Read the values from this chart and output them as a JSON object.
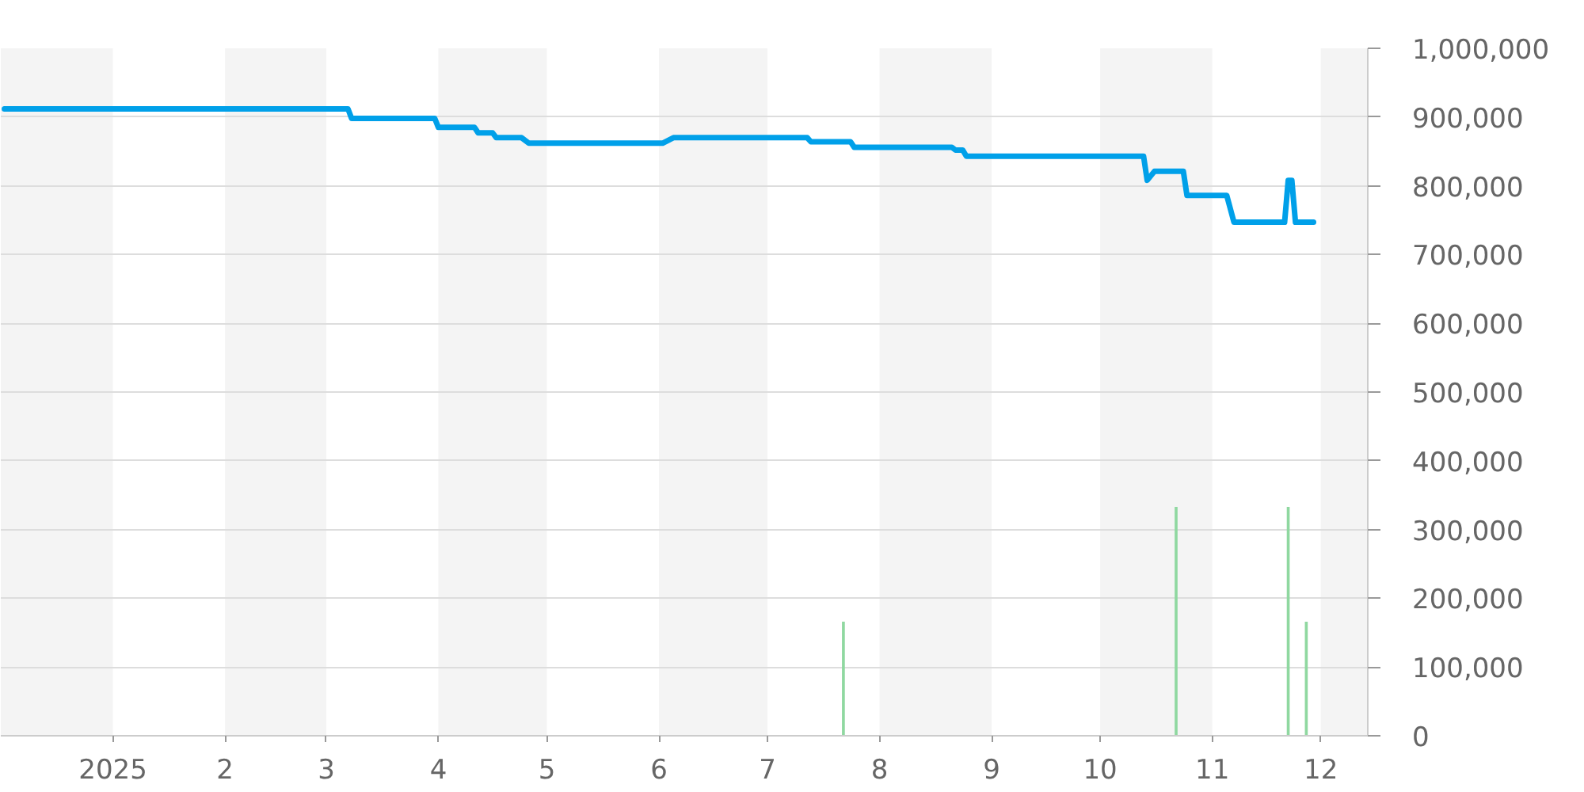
{
  "chart_data": {
    "type": "line",
    "xlim": [
      "2024-12-01",
      "2025-12-14"
    ],
    "xticks": [
      {
        "value": "2025-01-01",
        "label": "2025"
      },
      {
        "value": "2025-02-01",
        "label": "2"
      },
      {
        "value": "2025-03-01",
        "label": "3"
      },
      {
        "value": "2025-04-01",
        "label": "4"
      },
      {
        "value": "2025-05-01",
        "label": "5"
      },
      {
        "value": "2025-06-01",
        "label": "6"
      },
      {
        "value": "2025-07-01",
        "label": "7"
      },
      {
        "value": "2025-08-01",
        "label": "8"
      },
      {
        "value": "2025-09-01",
        "label": "9"
      },
      {
        "value": "2025-10-01",
        "label": "10"
      },
      {
        "value": "2025-11-01",
        "label": "11"
      },
      {
        "value": "2025-12-01",
        "label": "12"
      }
    ],
    "ylim": [
      0,
      1000000
    ],
    "yticks": [
      0,
      {
        "value": 100000,
        "label": "100,000"
      },
      {
        "value": 200000,
        "label": "200,000"
      },
      {
        "value": 300000,
        "label": "300,000"
      },
      {
        "value": 400000,
        "label": "400,000"
      },
      {
        "value": 500000,
        "label": "500,000"
      },
      {
        "value": 600000,
        "label": "600,000"
      },
      {
        "value": 700000,
        "label": "700,000"
      },
      {
        "value": 800000,
        "label": "800,000"
      },
      {
        "value": 900000,
        "label": "900,000"
      },
      {
        "value": 1000000,
        "label": "1,000,000"
      }
    ],
    "grid": "y",
    "bands": [
      {
        "axis": "x",
        "from": "2024-12-01",
        "to": "2025-01-01",
        "color": "#f4f4f4"
      },
      {
        "axis": "x",
        "from": "2025-02-01",
        "to": "2025-03-01",
        "color": "#f4f4f4"
      },
      {
        "axis": "x",
        "from": "2025-04-01",
        "to": "2025-05-01",
        "color": "#f4f4f4"
      },
      {
        "axis": "x",
        "from": "2025-06-01",
        "to": "2025-07-01",
        "color": "#f4f4f4"
      },
      {
        "axis": "x",
        "from": "2025-08-01",
        "to": "2025-09-01",
        "color": "#f4f4f4"
      },
      {
        "axis": "x",
        "from": "2025-10-01",
        "to": "2025-11-01",
        "color": "#f4f4f4"
      },
      {
        "axis": "x",
        "from": "2025-12-01",
        "to": "2025-12-14",
        "color": "#f4f4f4"
      }
    ],
    "series": [
      {
        "type": "bar",
        "color": "#8fd8a0",
        "x": [
          "2025-07-22",
          "2025-10-22",
          "2025-11-22",
          "2025-11-27"
        ],
        "values": [
          166000,
          333000,
          333000,
          166000
        ]
      },
      {
        "color": "#00a0e9",
        "x": [
          "2024-12-02",
          "2025-03-07",
          "2025-03-08",
          "2025-03-31",
          "2025-04-01",
          "2025-04-11",
          "2025-04-12",
          "2025-04-16",
          "2025-04-17",
          "2025-04-24",
          "2025-04-26",
          "2025-06-02",
          "2025-06-05",
          "2025-07-12",
          "2025-07-13",
          "2025-07-24",
          "2025-07-25",
          "2025-08-21",
          "2025-08-22",
          "2025-08-24",
          "2025-08-25",
          "2025-10-13",
          "2025-10-14",
          "2025-10-16",
          "2025-10-24",
          "2025-10-25",
          "2025-11-05",
          "2025-11-07",
          "2025-11-21",
          "2025-11-22",
          "2025-11-23",
          "2025-11-24",
          "2025-11-29"
        ],
        "values": [
          912000,
          912000,
          898000,
          898000,
          885000,
          885000,
          877000,
          877000,
          870000,
          870000,
          862000,
          862000,
          870000,
          870000,
          864000,
          864000,
          856000,
          856000,
          852000,
          852000,
          843000,
          843000,
          808000,
          821000,
          821000,
          786000,
          786000,
          747000,
          747000,
          808000,
          808000,
          747000,
          747000
        ]
      }
    ]
  }
}
